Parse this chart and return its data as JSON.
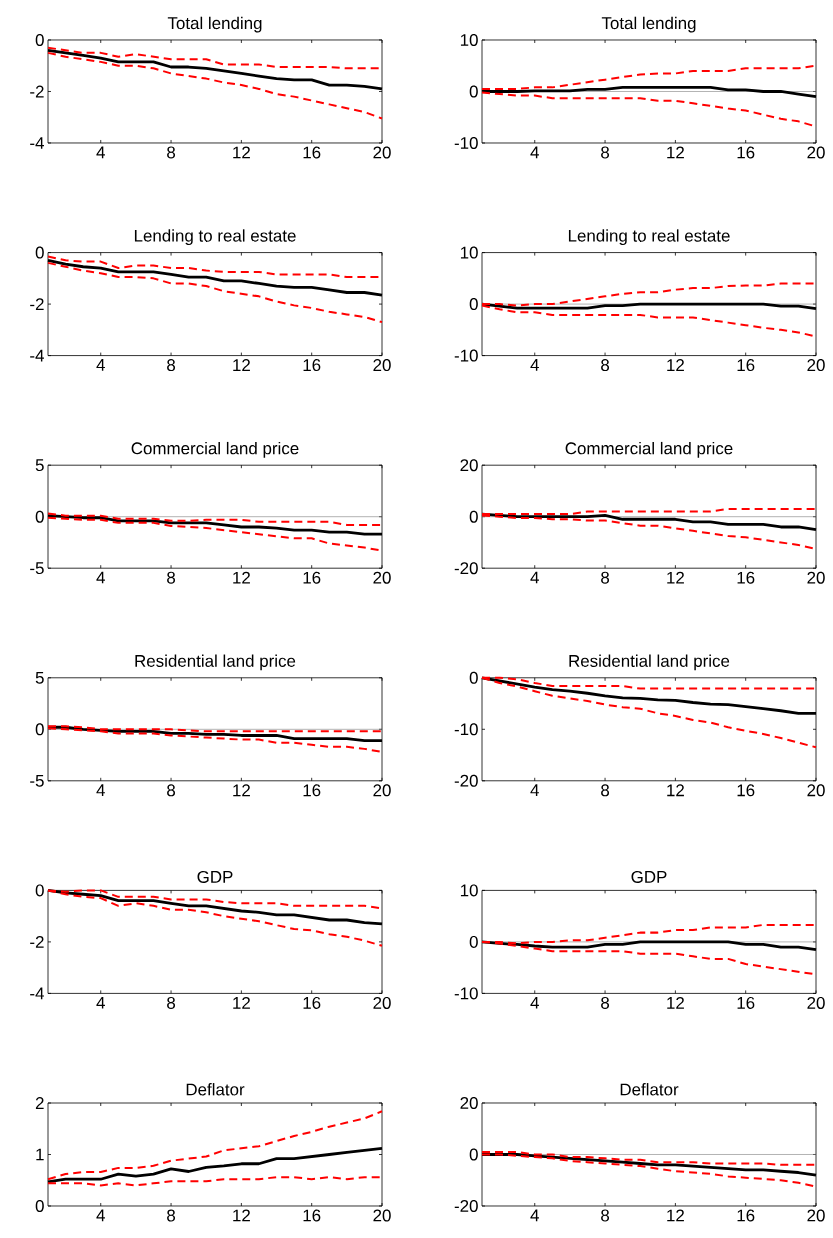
{
  "chart_data": [
    {
      "type": "line",
      "title": "Total lending",
      "x": [
        1,
        2,
        3,
        4,
        5,
        6,
        7,
        8,
        9,
        10,
        11,
        12,
        13,
        14,
        15,
        16,
        17,
        18,
        19,
        20
      ],
      "xlim": [
        1,
        20
      ],
      "xticks": [
        4,
        8,
        12,
        16,
        20
      ],
      "ylim": [
        -4,
        0
      ],
      "yticks": [
        -4,
        -2,
        0
      ],
      "series": [
        {
          "color": "#000000",
          "line_style": "solid",
          "values": [
            -0.4,
            -0.5,
            -0.6,
            -0.7,
            -0.85,
            -0.85,
            -0.85,
            -1.05,
            -1.05,
            -1.1,
            -1.2,
            -1.3,
            -1.4,
            -1.5,
            -1.55,
            -1.55,
            -1.75,
            -1.75,
            -1.8,
            -1.9
          ]
        },
        {
          "color": "#ff0000",
          "line_style": "dashed",
          "values": [
            -0.3,
            -0.4,
            -0.5,
            -0.5,
            -0.65,
            -0.55,
            -0.65,
            -0.75,
            -0.75,
            -0.75,
            -0.95,
            -0.95,
            -0.95,
            -1.05,
            -1.05,
            -1.05,
            -1.05,
            -1.1,
            -1.1,
            -1.1
          ]
        },
        {
          "color": "#ff0000",
          "line_style": "dashed",
          "values": [
            -0.5,
            -0.65,
            -0.75,
            -0.85,
            -1.0,
            -1.0,
            -1.1,
            -1.3,
            -1.4,
            -1.5,
            -1.65,
            -1.75,
            -1.9,
            -2.1,
            -2.2,
            -2.35,
            -2.5,
            -2.65,
            -2.8,
            -3.05
          ]
        }
      ]
    },
    {
      "type": "line",
      "title": "Total lending",
      "x": [
        1,
        2,
        3,
        4,
        5,
        6,
        7,
        8,
        9,
        10,
        11,
        12,
        13,
        14,
        15,
        16,
        17,
        18,
        19,
        20
      ],
      "xlim": [
        1,
        20
      ],
      "xticks": [
        4,
        8,
        12,
        16,
        20
      ],
      "ylim": [
        -10,
        10
      ],
      "yticks": [
        -10,
        0,
        10
      ],
      "ref_lines": [
        {
          "axis": "y",
          "value": 0
        }
      ],
      "series": [
        {
          "color": "#000000",
          "line_style": "solid",
          "values": [
            0,
            0,
            0,
            0.1,
            0.1,
            0.1,
            0.4,
            0.4,
            0.8,
            0.8,
            0.8,
            0.8,
            0.8,
            0.8,
            0.3,
            0.3,
            0,
            0,
            -0.5,
            -1
          ]
        },
        {
          "color": "#ff0000",
          "line_style": "dashed",
          "values": [
            0.5,
            0.5,
            0.5,
            0.8,
            0.8,
            1.3,
            1.8,
            2.3,
            2.8,
            3.3,
            3.5,
            3.5,
            4,
            4,
            4,
            4.5,
            4.5,
            4.5,
            4.5,
            5
          ]
        },
        {
          "color": "#ff0000",
          "line_style": "dashed",
          "values": [
            -0.2,
            -0.5,
            -0.8,
            -0.8,
            -1.3,
            -1.3,
            -1.3,
            -1.3,
            -1.3,
            -1.3,
            -1.8,
            -1.8,
            -2.3,
            -2.8,
            -3.3,
            -3.7,
            -4.5,
            -5.3,
            -5.8,
            -6.8
          ]
        }
      ]
    },
    {
      "type": "line",
      "title": "Lending to real estate",
      "x": [
        1,
        2,
        3,
        4,
        5,
        6,
        7,
        8,
        9,
        10,
        11,
        12,
        13,
        14,
        15,
        16,
        17,
        18,
        19,
        20
      ],
      "xlim": [
        1,
        20
      ],
      "xticks": [
        4,
        8,
        12,
        16,
        20
      ],
      "ylim": [
        -4,
        0
      ],
      "yticks": [
        -4,
        -2,
        0
      ],
      "series": [
        {
          "color": "#000000",
          "line_style": "solid",
          "values": [
            -0.3,
            -0.45,
            -0.55,
            -0.6,
            -0.75,
            -0.75,
            -0.75,
            -0.85,
            -0.95,
            -0.95,
            -1.1,
            -1.1,
            -1.2,
            -1.3,
            -1.35,
            -1.35,
            -1.45,
            -1.55,
            -1.55,
            -1.65
          ]
        },
        {
          "color": "#ff0000",
          "line_style": "dashed",
          "values": [
            -0.15,
            -0.3,
            -0.35,
            -0.35,
            -0.6,
            -0.5,
            -0.5,
            -0.6,
            -0.6,
            -0.7,
            -0.75,
            -0.75,
            -0.75,
            -0.85,
            -0.85,
            -0.85,
            -0.85,
            -0.95,
            -0.95,
            -0.95
          ]
        },
        {
          "color": "#ff0000",
          "line_style": "dashed",
          "values": [
            -0.4,
            -0.55,
            -0.7,
            -0.8,
            -0.95,
            -0.95,
            -1.0,
            -1.2,
            -1.2,
            -1.3,
            -1.5,
            -1.6,
            -1.7,
            -1.9,
            -2.05,
            -2.15,
            -2.3,
            -2.4,
            -2.5,
            -2.7
          ]
        }
      ]
    },
    {
      "type": "line",
      "title": "Lending to real estate",
      "x": [
        1,
        2,
        3,
        4,
        5,
        6,
        7,
        8,
        9,
        10,
        11,
        12,
        13,
        14,
        15,
        16,
        17,
        18,
        19,
        20
      ],
      "xlim": [
        1,
        20
      ],
      "xticks": [
        4,
        8,
        12,
        16,
        20
      ],
      "ylim": [
        -10,
        10
      ],
      "yticks": [
        -10,
        0,
        10
      ],
      "ref_lines": [
        {
          "axis": "y",
          "value": 0
        }
      ],
      "series": [
        {
          "color": "#000000",
          "line_style": "solid",
          "values": [
            0,
            -0.4,
            -0.8,
            -0.8,
            -0.8,
            -0.8,
            -0.8,
            -0.3,
            -0.3,
            0,
            0,
            0,
            0,
            0,
            0,
            0,
            0,
            -0.4,
            -0.4,
            -0.9
          ]
        },
        {
          "color": "#ff0000",
          "line_style": "dashed",
          "values": [
            0,
            0,
            -0.3,
            0,
            0,
            0.5,
            1,
            1.5,
            2,
            2.3,
            2.3,
            2.8,
            3.1,
            3.1,
            3.5,
            3.6,
            3.6,
            4,
            4,
            4
          ]
        },
        {
          "color": "#ff0000",
          "line_style": "dashed",
          "values": [
            -0.3,
            -1,
            -1.6,
            -1.6,
            -2.1,
            -2.1,
            -2.1,
            -2.1,
            -2.1,
            -2.1,
            -2.6,
            -2.6,
            -2.6,
            -3.1,
            -3.6,
            -4.1,
            -4.6,
            -5,
            -5.5,
            -6.3
          ]
        }
      ]
    },
    {
      "type": "line",
      "title": "Commercial land price",
      "x": [
        1,
        2,
        3,
        4,
        5,
        6,
        7,
        8,
        9,
        10,
        11,
        12,
        13,
        14,
        15,
        16,
        17,
        18,
        19,
        20
      ],
      "xlim": [
        1,
        20
      ],
      "xticks": [
        4,
        8,
        12,
        16,
        20
      ],
      "ylim": [
        -5,
        5
      ],
      "yticks": [
        -5,
        0,
        5
      ],
      "ref_lines": [
        {
          "axis": "y",
          "value": 0
        }
      ],
      "series": [
        {
          "color": "#000000",
          "line_style": "solid",
          "values": [
            0.1,
            0,
            -0.1,
            -0.1,
            -0.4,
            -0.4,
            -0.4,
            -0.6,
            -0.6,
            -0.6,
            -0.8,
            -1,
            -1,
            -1.1,
            -1.3,
            -1.3,
            -1.5,
            -1.5,
            -1.7,
            -1.7
          ]
        },
        {
          "color": "#ff0000",
          "line_style": "dashed",
          "values": [
            0.3,
            0.1,
            0.1,
            0.1,
            -0.2,
            -0.2,
            -0.2,
            -0.4,
            -0.4,
            -0.3,
            -0.3,
            -0.3,
            -0.5,
            -0.5,
            -0.5,
            -0.5,
            -0.5,
            -0.8,
            -0.8,
            -0.8
          ]
        },
        {
          "color": "#ff0000",
          "line_style": "dashed",
          "values": [
            -0.1,
            -0.2,
            -0.3,
            -0.3,
            -0.6,
            -0.6,
            -0.6,
            -0.9,
            -1.0,
            -1.1,
            -1.3,
            -1.5,
            -1.7,
            -1.9,
            -2.1,
            -2.1,
            -2.6,
            -2.8,
            -3.0,
            -3.3
          ]
        }
      ]
    },
    {
      "type": "line",
      "title": "Commercial land price",
      "x": [
        1,
        2,
        3,
        4,
        5,
        6,
        7,
        8,
        9,
        10,
        11,
        12,
        13,
        14,
        15,
        16,
        17,
        18,
        19,
        20
      ],
      "xlim": [
        1,
        20
      ],
      "xticks": [
        4,
        8,
        12,
        16,
        20
      ],
      "ylim": [
        -20,
        20
      ],
      "yticks": [
        -20,
        0,
        20
      ],
      "ref_lines": [
        {
          "axis": "y",
          "value": 0
        }
      ],
      "series": [
        {
          "color": "#000000",
          "line_style": "solid",
          "values": [
            1,
            0.5,
            0,
            0,
            0,
            0,
            0,
            0.5,
            -1,
            -1,
            -1,
            -1,
            -2,
            -2,
            -3,
            -3,
            -3,
            -4,
            -4,
            -5
          ]
        },
        {
          "color": "#ff0000",
          "line_style": "dashed",
          "values": [
            1,
            1,
            1,
            1,
            1,
            1,
            2,
            2,
            2,
            2,
            2,
            2,
            2,
            2,
            3,
            3,
            3,
            3,
            3,
            3
          ]
        },
        {
          "color": "#ff0000",
          "line_style": "dashed",
          "values": [
            0.5,
            0,
            -0.5,
            -0.5,
            -1,
            -1,
            -1.5,
            -1.5,
            -2.5,
            -3.5,
            -3.5,
            -4.5,
            -5.5,
            -6.5,
            -7.5,
            -8,
            -9,
            -10,
            -11,
            -12.5
          ]
        }
      ]
    },
    {
      "type": "line",
      "title": "Residential land price",
      "x": [
        1,
        2,
        3,
        4,
        5,
        6,
        7,
        8,
        9,
        10,
        11,
        12,
        13,
        14,
        15,
        16,
        17,
        18,
        19,
        20
      ],
      "xlim": [
        1,
        20
      ],
      "xticks": [
        4,
        8,
        12,
        16,
        20
      ],
      "ylim": [
        -5,
        5
      ],
      "yticks": [
        -5,
        0,
        5
      ],
      "ref_lines": [
        {
          "axis": "y",
          "value": 0
        }
      ],
      "series": [
        {
          "color": "#000000",
          "line_style": "solid",
          "values": [
            0.2,
            0.2,
            0,
            -0.1,
            -0.2,
            -0.2,
            -0.2,
            -0.4,
            -0.4,
            -0.5,
            -0.5,
            -0.6,
            -0.6,
            -0.6,
            -0.9,
            -0.9,
            -0.9,
            -0.9,
            -1.1,
            -1.1
          ]
        },
        {
          "color": "#ff0000",
          "line_style": "dashed",
          "values": [
            0.3,
            0.3,
            0.2,
            0,
            0,
            0,
            0,
            0,
            -0.1,
            -0.2,
            -0.2,
            -0.2,
            -0.2,
            -0.2,
            -0.2,
            -0.2,
            -0.2,
            -0.2,
            -0.2,
            -0.2
          ]
        },
        {
          "color": "#ff0000",
          "line_style": "dashed",
          "values": [
            0.1,
            0,
            -0.1,
            -0.2,
            -0.4,
            -0.4,
            -0.4,
            -0.6,
            -0.7,
            -0.8,
            -0.9,
            -1.0,
            -1.0,
            -1.3,
            -1.3,
            -1.5,
            -1.7,
            -1.7,
            -1.9,
            -2.2
          ]
        }
      ]
    },
    {
      "type": "line",
      "title": "Residential land price",
      "x": [
        1,
        2,
        3,
        4,
        5,
        6,
        7,
        8,
        9,
        10,
        11,
        12,
        13,
        14,
        15,
        16,
        17,
        18,
        19,
        20
      ],
      "xlim": [
        1,
        20
      ],
      "xticks": [
        4,
        8,
        12,
        16,
        20
      ],
      "ylim": [
        -20,
        0
      ],
      "yticks": [
        -20,
        -10,
        0
      ],
      "series": [
        {
          "color": "#000000",
          "line_style": "solid",
          "values": [
            0,
            -0.6,
            -1.2,
            -1.8,
            -2.3,
            -2.6,
            -3,
            -3.5,
            -3.9,
            -4,
            -4.3,
            -4.4,
            -4.8,
            -5.1,
            -5.2,
            -5.6,
            -6,
            -6.4,
            -6.9,
            -6.9
          ]
        },
        {
          "color": "#ff0000",
          "line_style": "dashed",
          "values": [
            0,
            0,
            -0.3,
            -1,
            -1.6,
            -1.6,
            -1.6,
            -1.6,
            -1.6,
            -2.1,
            -2.1,
            -2.1,
            -2.1,
            -2.1,
            -2.1,
            -2.1,
            -2.1,
            -2.1,
            -2.1,
            -2.1
          ]
        },
        {
          "color": "#ff0000",
          "line_style": "dashed",
          "values": [
            0,
            -1,
            -1.7,
            -2.6,
            -3.5,
            -4,
            -4.5,
            -5.2,
            -5.7,
            -6,
            -6.9,
            -7.4,
            -8.2,
            -8.7,
            -9.6,
            -10.3,
            -10.9,
            -11.7,
            -12.6,
            -13.5
          ]
        }
      ]
    },
    {
      "type": "line",
      "title": "GDP",
      "x": [
        1,
        2,
        3,
        4,
        5,
        6,
        7,
        8,
        9,
        10,
        11,
        12,
        13,
        14,
        15,
        16,
        17,
        18,
        19,
        20
      ],
      "xlim": [
        1,
        20
      ],
      "xticks": [
        4,
        8,
        12,
        16,
        20
      ],
      "ylim": [
        -4,
        0
      ],
      "yticks": [
        -4,
        -2,
        0
      ],
      "series": [
        {
          "color": "#000000",
          "line_style": "solid",
          "values": [
            0,
            -0.1,
            -0.15,
            -0.2,
            -0.4,
            -0.4,
            -0.4,
            -0.5,
            -0.6,
            -0.6,
            -0.7,
            -0.8,
            -0.85,
            -0.95,
            -0.95,
            -1.05,
            -1.15,
            -1.15,
            -1.25,
            -1.3
          ]
        },
        {
          "color": "#ff0000",
          "line_style": "dashed",
          "values": [
            0,
            -0.05,
            0,
            0,
            -0.25,
            -0.25,
            -0.25,
            -0.35,
            -0.35,
            -0.35,
            -0.45,
            -0.5,
            -0.5,
            -0.5,
            -0.6,
            -0.6,
            -0.6,
            -0.6,
            -0.6,
            -0.7
          ]
        },
        {
          "color": "#ff0000",
          "line_style": "dashed",
          "values": [
            0,
            -0.15,
            -0.25,
            -0.3,
            -0.6,
            -0.5,
            -0.6,
            -0.75,
            -0.75,
            -0.85,
            -1.0,
            -1.1,
            -1.2,
            -1.35,
            -1.5,
            -1.55,
            -1.7,
            -1.8,
            -1.95,
            -2.15
          ]
        }
      ]
    },
    {
      "type": "line",
      "title": "GDP",
      "x": [
        1,
        2,
        3,
        4,
        5,
        6,
        7,
        8,
        9,
        10,
        11,
        12,
        13,
        14,
        15,
        16,
        17,
        18,
        19,
        20
      ],
      "xlim": [
        1,
        20
      ],
      "xticks": [
        4,
        8,
        12,
        16,
        20
      ],
      "ylim": [
        -10,
        10
      ],
      "yticks": [
        -10,
        0,
        10
      ],
      "ref_lines": [
        {
          "axis": "y",
          "value": 0
        }
      ],
      "series": [
        {
          "color": "#000000",
          "line_style": "solid",
          "values": [
            0,
            -0.3,
            -0.5,
            -0.8,
            -1,
            -1,
            -1,
            -0.5,
            -0.5,
            0,
            0,
            0,
            0,
            0,
            0,
            -0.5,
            -0.5,
            -1,
            -1,
            -1.5
          ]
        },
        {
          "color": "#ff0000",
          "line_style": "dashed",
          "values": [
            0,
            0,
            -0.3,
            0,
            0,
            0.3,
            0.3,
            0.8,
            1.3,
            1.8,
            1.8,
            2.3,
            2.3,
            2.8,
            2.8,
            2.8,
            3.3,
            3.3,
            3.3,
            3.3
          ]
        },
        {
          "color": "#ff0000",
          "line_style": "dashed",
          "values": [
            0,
            -0.3,
            -0.8,
            -1.3,
            -1.8,
            -1.8,
            -1.8,
            -1.8,
            -1.8,
            -2.3,
            -2.3,
            -2.3,
            -2.8,
            -3.3,
            -3.3,
            -4.3,
            -4.8,
            -5.3,
            -5.8,
            -6.3
          ]
        }
      ]
    },
    {
      "type": "line",
      "title": "Deflator",
      "x": [
        1,
        2,
        3,
        4,
        5,
        6,
        7,
        8,
        9,
        10,
        11,
        12,
        13,
        14,
        15,
        16,
        17,
        18,
        19,
        20
      ],
      "xlim": [
        1,
        20
      ],
      "xticks": [
        4,
        8,
        12,
        16,
        20
      ],
      "ylim": [
        0,
        2
      ],
      "yticks": [
        0,
        1,
        2
      ],
      "series": [
        {
          "color": "#000000",
          "line_style": "solid",
          "values": [
            0.47,
            0.52,
            0.52,
            0.52,
            0.62,
            0.58,
            0.62,
            0.72,
            0.67,
            0.75,
            0.78,
            0.82,
            0.82,
            0.92,
            0.92,
            0.96,
            1.0,
            1.04,
            1.08,
            1.12
          ]
        },
        {
          "color": "#ff0000",
          "line_style": "dashed",
          "values": [
            0.52,
            0.62,
            0.66,
            0.66,
            0.74,
            0.74,
            0.78,
            0.88,
            0.92,
            0.96,
            1.08,
            1.12,
            1.16,
            1.26,
            1.36,
            1.44,
            1.54,
            1.62,
            1.7,
            1.84
          ]
        },
        {
          "color": "#ff0000",
          "line_style": "dashed",
          "values": [
            0.44,
            0.44,
            0.44,
            0.4,
            0.44,
            0.4,
            0.44,
            0.48,
            0.48,
            0.48,
            0.52,
            0.52,
            0.52,
            0.56,
            0.56,
            0.52,
            0.56,
            0.52,
            0.56,
            0.56
          ]
        }
      ]
    },
    {
      "type": "line",
      "title": "Deflator",
      "x": [
        1,
        2,
        3,
        4,
        5,
        6,
        7,
        8,
        9,
        10,
        11,
        12,
        13,
        14,
        15,
        16,
        17,
        18,
        19,
        20
      ],
      "xlim": [
        1,
        20
      ],
      "xticks": [
        4,
        8,
        12,
        16,
        20
      ],
      "ylim": [
        -20,
        20
      ],
      "yticks": [
        -20,
        0,
        20
      ],
      "ref_lines": [
        {
          "axis": "y",
          "value": 0
        }
      ],
      "series": [
        {
          "color": "#000000",
          "line_style": "solid",
          "values": [
            0,
            0,
            0,
            -0.5,
            -1,
            -1.5,
            -2,
            -2.5,
            -3,
            -3.5,
            -4,
            -4,
            -4.5,
            -5,
            -5.5,
            -6,
            -6,
            -6.5,
            -7,
            -8
          ]
        },
        {
          "color": "#ff0000",
          "line_style": "dashed",
          "values": [
            1,
            1,
            1,
            0,
            0,
            -1,
            -1,
            -1.5,
            -2,
            -2,
            -3,
            -3,
            -3,
            -3.5,
            -3.5,
            -3.5,
            -3.5,
            -4,
            -4,
            -4
          ]
        },
        {
          "color": "#ff0000",
          "line_style": "dashed",
          "values": [
            0,
            0,
            -0.5,
            -1,
            -1.5,
            -2.5,
            -3,
            -3.5,
            -4,
            -4.5,
            -5.5,
            -6.5,
            -7,
            -7.5,
            -8.5,
            -9,
            -9.5,
            -10,
            -11,
            -12.5
          ]
        }
      ]
    }
  ]
}
